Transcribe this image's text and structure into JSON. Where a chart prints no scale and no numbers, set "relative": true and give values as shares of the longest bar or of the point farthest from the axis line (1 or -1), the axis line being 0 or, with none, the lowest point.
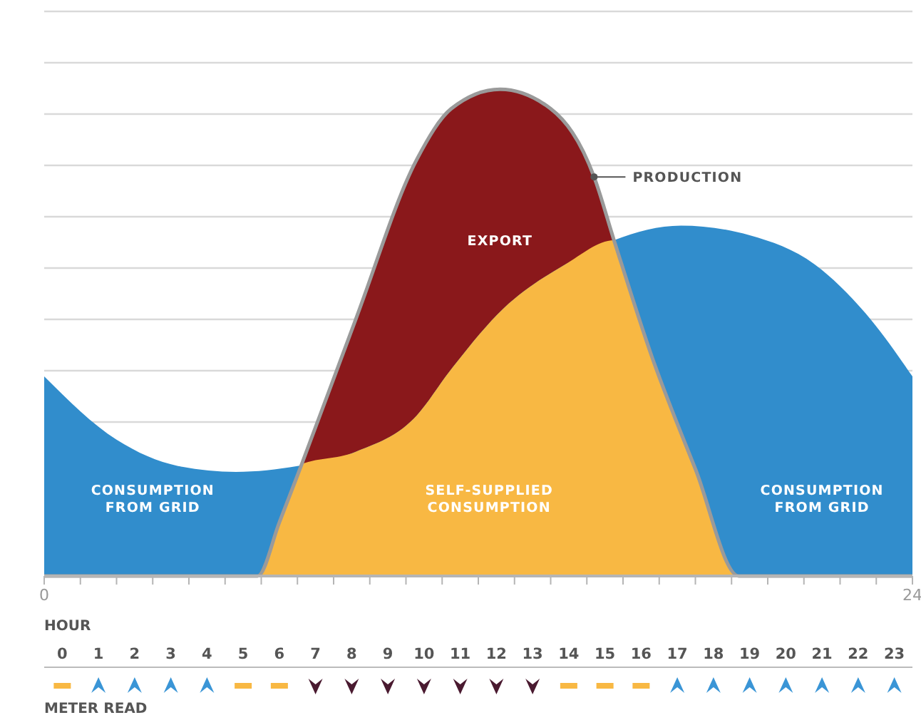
{
  "chart_data": {
    "type": "area",
    "relative": true,
    "grid": "y",
    "xlim": [
      0,
      24
    ],
    "xticks": [
      0,
      {
        "value": 1,
        "label": null
      },
      {
        "value": 2,
        "label": null
      },
      {
        "value": 3,
        "label": null
      },
      {
        "value": 4,
        "label": null
      },
      {
        "value": 5,
        "label": null
      },
      {
        "value": 6,
        "label": null
      },
      {
        "value": 7,
        "label": null
      },
      {
        "value": 8,
        "label": null
      },
      {
        "value": 9,
        "label": null
      },
      {
        "value": 10,
        "label": null
      },
      {
        "value": 11,
        "label": null
      },
      {
        "value": 12,
        "label": null
      },
      {
        "value": 13,
        "label": null
      },
      {
        "value": 14,
        "label": null
      },
      {
        "value": 15,
        "label": null
      },
      {
        "value": 16,
        "label": null
      },
      {
        "value": 17,
        "label": null
      },
      {
        "value": 18,
        "label": null
      },
      {
        "value": 19,
        "label": null
      },
      {
        "value": 20,
        "label": null
      },
      {
        "value": 21,
        "label": null
      },
      {
        "value": 22,
        "label": null
      },
      {
        "value": 23,
        "label": null
      },
      24
    ],
    "x2label": "HOUR",
    "x2lim": [
      0,
      24
    ],
    "x2ticks": [
      {
        "value": 0.5,
        "label": "0"
      },
      {
        "value": 1.5,
        "label": "1"
      },
      {
        "value": 2.5,
        "label": "2"
      },
      {
        "value": 3.5,
        "label": "3"
      },
      {
        "value": 4.5,
        "label": "4"
      },
      {
        "value": 5.5,
        "label": "5"
      },
      {
        "value": 6.5,
        "label": "6"
      },
      {
        "value": 7.5,
        "label": "7"
      },
      {
        "value": 8.5,
        "label": "8"
      },
      {
        "value": 9.5,
        "label": "9"
      },
      {
        "value": 10.5,
        "label": "10"
      },
      {
        "value": 11.5,
        "label": "11"
      },
      {
        "value": 12.5,
        "label": "12"
      },
      {
        "value": 13.5,
        "label": "13"
      },
      {
        "value": 14.5,
        "label": "14"
      },
      {
        "value": 15.5,
        "label": "15"
      },
      {
        "value": 16.5,
        "label": "16"
      },
      {
        "value": 17.5,
        "label": "17"
      },
      {
        "value": 18.5,
        "label": "18"
      },
      {
        "value": 19.5,
        "label": "19"
      },
      {
        "value": 20.5,
        "label": "20"
      },
      {
        "value": 21.5,
        "label": "21"
      },
      {
        "value": 22.5,
        "label": "22"
      },
      {
        "value": 23.5,
        "label": "23"
      }
    ],
    "series": [
      {
        "color": "#8a181b",
        "x": [
          0,
          5.9,
          6.5,
          7.1,
          8.6,
          10.3,
          11.25,
          12.6,
          14.0,
          15.2,
          15.75,
          16.8,
          18.0,
          19.2,
          24
        ],
        "values": [
          0,
          0,
          0.11,
          0.226,
          0.525,
          0.856,
          0.96,
          1,
          0.96,
          0.82,
          0.69,
          0.45,
          0.22,
          0,
          0
        ]
      },
      {
        "color": "#318dcc",
        "x": [
          0,
          2.0,
          3.7,
          5.3,
          7.0,
          8.6,
          10.3,
          11.2,
          12.7,
          14.4,
          15.75,
          17.6,
          19.5,
          21.3,
          22.7,
          24
        ],
        "values": [
          0.41,
          0.28,
          0.226,
          0.214,
          0.226,
          0.255,
          0.33,
          0.42,
          0.55,
          0.64,
          0.69,
          0.72,
          0.7,
          0.64,
          0.54,
          0.41
        ]
      },
      {
        "color": "#f8b843",
        "x": [
          5.9,
          7.0,
          8.6,
          10.3,
          11.2,
          12.7,
          14.4,
          15.75,
          16.8,
          19.2
        ],
        "values": [
          0,
          0.226,
          0.255,
          0.33,
          0.42,
          0.55,
          0.64,
          0.69,
          0.45,
          0
        ]
      }
    ],
    "annotations": [
      {
        "text": "PRODUCTION",
        "x": 15.2,
        "y": 0.82
      },
      "EXPORT",
      "CONSUMPTION\nFROM GRID",
      "SELF-SUPPLIED\nCONSUMPTION",
      "CONSUMPTION\nFROM GRID",
      "METER READ"
    ]
  }
}
